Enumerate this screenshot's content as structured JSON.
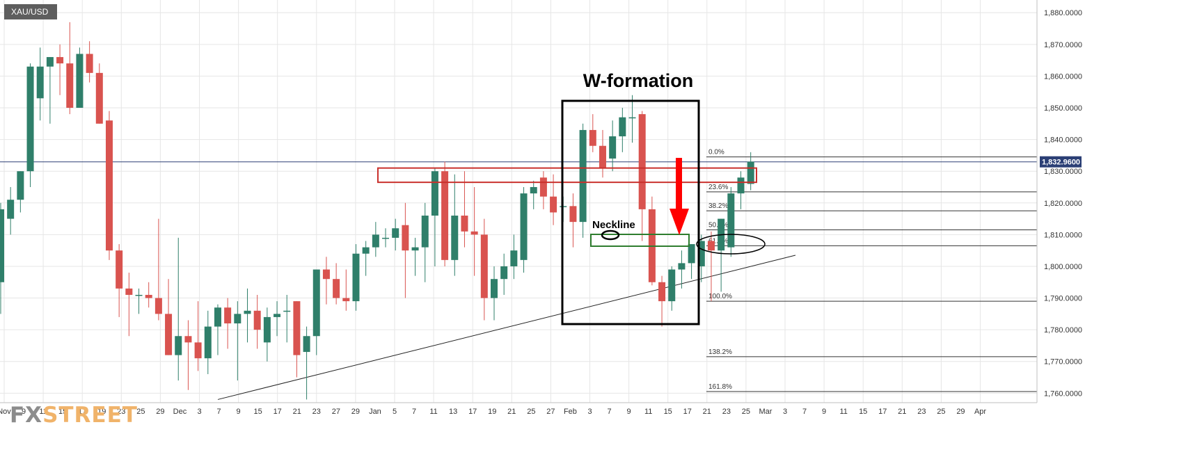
{
  "symbol": "XAU/USD",
  "logo": {
    "part1": "FX",
    "part2": "STREET"
  },
  "current_price_label": "1,832.9600",
  "colors": {
    "up": "#2f7f6a",
    "down": "#d9534f",
    "grid": "#e6e6e6",
    "axis_text": "#333333",
    "price_line": "#2b3f75",
    "resistance_box": "#c9302c",
    "neckline_box": "#2e7d2e",
    "arrow": "#ff0000"
  },
  "annotations": {
    "title": "W-formation",
    "neckline": "Neckline"
  },
  "chart_data": {
    "type": "candlestick",
    "ylim": [
      1757,
      1884
    ],
    "y_ticks": [
      1760,
      1770,
      1780,
      1790,
      1800,
      1810,
      1820,
      1830,
      1840,
      1850,
      1860,
      1870,
      1880
    ],
    "y_tick_labels": [
      "1,760.0000",
      "1,770.0000",
      "1,780.0000",
      "1,790.0000",
      "1,800.0000",
      "1,810.0000",
      "1,820.0000",
      "1,830.0000",
      "1,840.0000",
      "1,850.0000",
      "1,860.0000",
      "1,870.0000",
      "1,880.0000"
    ],
    "x_tick_labels": [
      "Nov",
      "9",
      "11",
      "15",
      "17",
      "19",
      "23",
      "25",
      "29",
      "Dec",
      "3",
      "7",
      "9",
      "15",
      "17",
      "21",
      "23",
      "27",
      "29",
      "Jan",
      "5",
      "7",
      "11",
      "13",
      "17",
      "19",
      "21",
      "25",
      "27",
      "Feb",
      "3",
      "7",
      "9",
      "11",
      "15",
      "17",
      "21",
      "23",
      "25",
      "Mar",
      "3",
      "7",
      "9",
      "11",
      "15",
      "17",
      "21",
      "23",
      "25",
      "29",
      "Apr"
    ],
    "current_price": 1832.96,
    "candles": [
      {
        "date": "Nov 6",
        "open": 1795,
        "high": 1820,
        "low": 1785,
        "close": 1818
      },
      {
        "date": "Nov 9",
        "open": 1815,
        "high": 1825,
        "low": 1810,
        "close": 1821
      },
      {
        "date": "Nov 10",
        "open": 1821,
        "high": 1830,
        "low": 1817,
        "close": 1830
      },
      {
        "date": "Nov 11",
        "open": 1830,
        "high": 1864,
        "low": 1825,
        "close": 1863
      },
      {
        "date": "Nov 12",
        "open": 1853,
        "high": 1869,
        "low": 1846,
        "close": 1863
      },
      {
        "date": "Nov 13",
        "open": 1863,
        "high": 1866,
        "low": 1845,
        "close": 1866
      },
      {
        "date": "Nov 16",
        "open": 1866,
        "high": 1870,
        "low": 1854,
        "close": 1864
      },
      {
        "date": "Nov 17",
        "open": 1864,
        "high": 1877,
        "low": 1848,
        "close": 1850
      },
      {
        "date": "Nov 18",
        "open": 1850,
        "high": 1869,
        "low": 1850,
        "close": 1867
      },
      {
        "date": "Nov 19",
        "open": 1867,
        "high": 1871,
        "low": 1858,
        "close": 1861
      },
      {
        "date": "Nov 20",
        "open": 1861,
        "high": 1864,
        "low": 1845,
        "close": 1845
      },
      {
        "date": "Nov 23",
        "open": 1846,
        "high": 1849,
        "low": 1802,
        "close": 1805
      },
      {
        "date": "Nov 24",
        "open": 1805,
        "high": 1807,
        "low": 1784,
        "close": 1793
      },
      {
        "date": "Nov 25",
        "open": 1793,
        "high": 1798,
        "low": 1778,
        "close": 1791
      },
      {
        "date": "Nov 26",
        "open": 1791,
        "high": 1793,
        "low": 1785,
        "close": 1791
      },
      {
        "date": "Nov 27",
        "open": 1791,
        "high": 1795,
        "low": 1787,
        "close": 1790
      },
      {
        "date": "Nov 30",
        "open": 1790,
        "high": 1815,
        "low": 1783,
        "close": 1785
      },
      {
        "date": "Dec 1",
        "open": 1785,
        "high": 1796,
        "low": 1772,
        "close": 1772
      },
      {
        "date": "Dec 2",
        "open": 1772,
        "high": 1809,
        "low": 1764,
        "close": 1778
      },
      {
        "date": "Dec 3",
        "open": 1778,
        "high": 1783,
        "low": 1761,
        "close": 1776
      },
      {
        "date": "Dec 4",
        "open": 1776,
        "high": 1789,
        "low": 1767,
        "close": 1771
      },
      {
        "date": "Dec 7",
        "open": 1771,
        "high": 1786,
        "low": 1766,
        "close": 1781
      },
      {
        "date": "Dec 8",
        "open": 1781,
        "high": 1788,
        "low": 1772,
        "close": 1787
      },
      {
        "date": "Dec 9",
        "open": 1787,
        "high": 1790,
        "low": 1774,
        "close": 1782
      },
      {
        "date": "Dec 10",
        "open": 1782,
        "high": 1789,
        "low": 1764,
        "close": 1785
      },
      {
        "date": "Dec 11",
        "open": 1785,
        "high": 1793,
        "low": 1776,
        "close": 1786
      },
      {
        "date": "Dec 14",
        "open": 1786,
        "high": 1791,
        "low": 1774,
        "close": 1780
      },
      {
        "date": "Dec 15",
        "open": 1776,
        "high": 1787,
        "low": 1770,
        "close": 1784
      },
      {
        "date": "Dec 16",
        "open": 1784,
        "high": 1789,
        "low": 1778,
        "close": 1785
      },
      {
        "date": "Dec 17",
        "open": 1786,
        "high": 1791,
        "low": 1776,
        "close": 1786
      },
      {
        "date": "Dec 18",
        "open": 1789,
        "high": 1789,
        "low": 1765,
        "close": 1772
      },
      {
        "date": "Dec 21",
        "open": 1773,
        "high": 1781,
        "low": 1758,
        "close": 1778
      },
      {
        "date": "Dec 22",
        "open": 1778,
        "high": 1799,
        "low": 1772,
        "close": 1799
      },
      {
        "date": "Dec 23",
        "open": 1799,
        "high": 1803,
        "low": 1788,
        "close": 1796
      },
      {
        "date": "Dec 24",
        "open": 1796,
        "high": 1801,
        "low": 1788,
        "close": 1790
      },
      {
        "date": "Dec 25",
        "open": 1790,
        "high": 1799,
        "low": 1786,
        "close": 1789
      },
      {
        "date": "Dec 28",
        "open": 1789,
        "high": 1807,
        "low": 1786,
        "close": 1804
      },
      {
        "date": "Dec 29",
        "open": 1804,
        "high": 1808,
        "low": 1797,
        "close": 1806
      },
      {
        "date": "Dec 30",
        "open": 1806,
        "high": 1814,
        "low": 1803,
        "close": 1810
      },
      {
        "date": "Dec 31",
        "open": 1809,
        "high": 1812,
        "low": 1806,
        "close": 1809
      },
      {
        "date": "Jan 1",
        "open": 1809,
        "high": 1815,
        "low": 1805,
        "close": 1812
      },
      {
        "date": "Jan 4",
        "open": 1813,
        "high": 1820,
        "low": 1790,
        "close": 1805
      },
      {
        "date": "Jan 5",
        "open": 1805,
        "high": 1809,
        "low": 1797,
        "close": 1806
      },
      {
        "date": "Jan 6",
        "open": 1806,
        "high": 1820,
        "low": 1795,
        "close": 1816
      },
      {
        "date": "Jan 7",
        "open": 1816,
        "high": 1831,
        "low": 1800,
        "close": 1830
      },
      {
        "date": "Jan 8",
        "open": 1830,
        "high": 1833,
        "low": 1800,
        "close": 1802
      },
      {
        "date": "Jan 11",
        "open": 1802,
        "high": 1829,
        "low": 1797,
        "close": 1816
      },
      {
        "date": "Jan 12",
        "open": 1816,
        "high": 1830,
        "low": 1806,
        "close": 1811
      },
      {
        "date": "Jan 13",
        "open": 1811,
        "high": 1825,
        "low": 1797,
        "close": 1810
      },
      {
        "date": "Jan 14",
        "open": 1810,
        "high": 1815,
        "low": 1783,
        "close": 1790
      },
      {
        "date": "Jan 15",
        "open": 1790,
        "high": 1800,
        "low": 1783,
        "close": 1796
      },
      {
        "date": "Jan 18",
        "open": 1796,
        "high": 1804,
        "low": 1791,
        "close": 1800
      },
      {
        "date": "Jan 19",
        "open": 1800,
        "high": 1810,
        "low": 1796,
        "close": 1805
      },
      {
        "date": "Jan 20",
        "open": 1802,
        "high": 1825,
        "low": 1798,
        "close": 1823
      },
      {
        "date": "Jan 21",
        "open": 1823,
        "high": 1827,
        "low": 1818,
        "close": 1825
      },
      {
        "date": "Jan 22",
        "open": 1828,
        "high": 1830,
        "low": 1818,
        "close": 1822
      },
      {
        "date": "Jan 25",
        "open": 1822,
        "high": 1829,
        "low": 1813,
        "close": 1817
      },
      {
        "date": "Jan 26",
        "open": 1819,
        "high": 1822,
        "low": 1814,
        "close": 1819
      },
      {
        "date": "Jan 27",
        "open": 1819,
        "high": 1823,
        "low": 1806,
        "close": 1814
      },
      {
        "date": "Jan 28",
        "open": 1814,
        "high": 1845,
        "low": 1809,
        "close": 1843
      },
      {
        "date": "Jan 29",
        "open": 1843,
        "high": 1848,
        "low": 1836,
        "close": 1838
      },
      {
        "date": "Feb 1",
        "open": 1838,
        "high": 1843,
        "low": 1828,
        "close": 1831
      },
      {
        "date": "Feb 2",
        "open": 1834,
        "high": 1846,
        "low": 1830,
        "close": 1841
      },
      {
        "date": "Feb 3",
        "open": 1841,
        "high": 1850,
        "low": 1836,
        "close": 1847
      },
      {
        "date": "Feb 4",
        "open": 1847,
        "high": 1854,
        "low": 1839,
        "close": 1847
      },
      {
        "date": "Feb 5",
        "open": 1848,
        "high": 1849,
        "low": 1808,
        "close": 1818
      },
      {
        "date": "Feb 8",
        "open": 1818,
        "high": 1822,
        "low": 1794,
        "close": 1795
      },
      {
        "date": "Feb 9",
        "open": 1795,
        "high": 1797,
        "low": 1781,
        "close": 1789
      },
      {
        "date": "Feb 10",
        "open": 1789,
        "high": 1800,
        "low": 1786,
        "close": 1799
      },
      {
        "date": "Feb 11",
        "open": 1799,
        "high": 1805,
        "low": 1793,
        "close": 1801
      },
      {
        "date": "Feb 12",
        "open": 1801,
        "high": 1807,
        "low": 1796,
        "close": 1807
      },
      {
        "date": "Feb 15",
        "open": 1800,
        "high": 1810,
        "low": 1795,
        "close": 1808
      },
      {
        "date": "Feb 16",
        "open": 1808,
        "high": 1811,
        "low": 1789,
        "close": 1805
      },
      {
        "date": "Feb 17",
        "open": 1805,
        "high": 1815,
        "low": 1792,
        "close": 1815
      },
      {
        "date": "Feb 18",
        "open": 1806,
        "high": 1825,
        "low": 1803,
        "close": 1823
      },
      {
        "date": "Feb 19",
        "open": 1823,
        "high": 1830,
        "low": 1818,
        "close": 1828
      },
      {
        "date": "Feb 22",
        "open": 1826,
        "high": 1836,
        "low": 1824,
        "close": 1833
      }
    ],
    "fibonacci": [
      {
        "label": "0.0%",
        "value": 1834.5
      },
      {
        "label": "23.6%",
        "value": 1823.5
      },
      {
        "label": "38.2%",
        "value": 1817.5
      },
      {
        "label": "50.0%",
        "value": 1811.5
      },
      {
        "label": "61.8%",
        "value": 1806.5
      },
      {
        "label": "100.0%",
        "value": 1789
      },
      {
        "label": "138.2%",
        "value": 1771.5
      },
      {
        "label": "161.8%",
        "value": 1760.5
      }
    ]
  }
}
